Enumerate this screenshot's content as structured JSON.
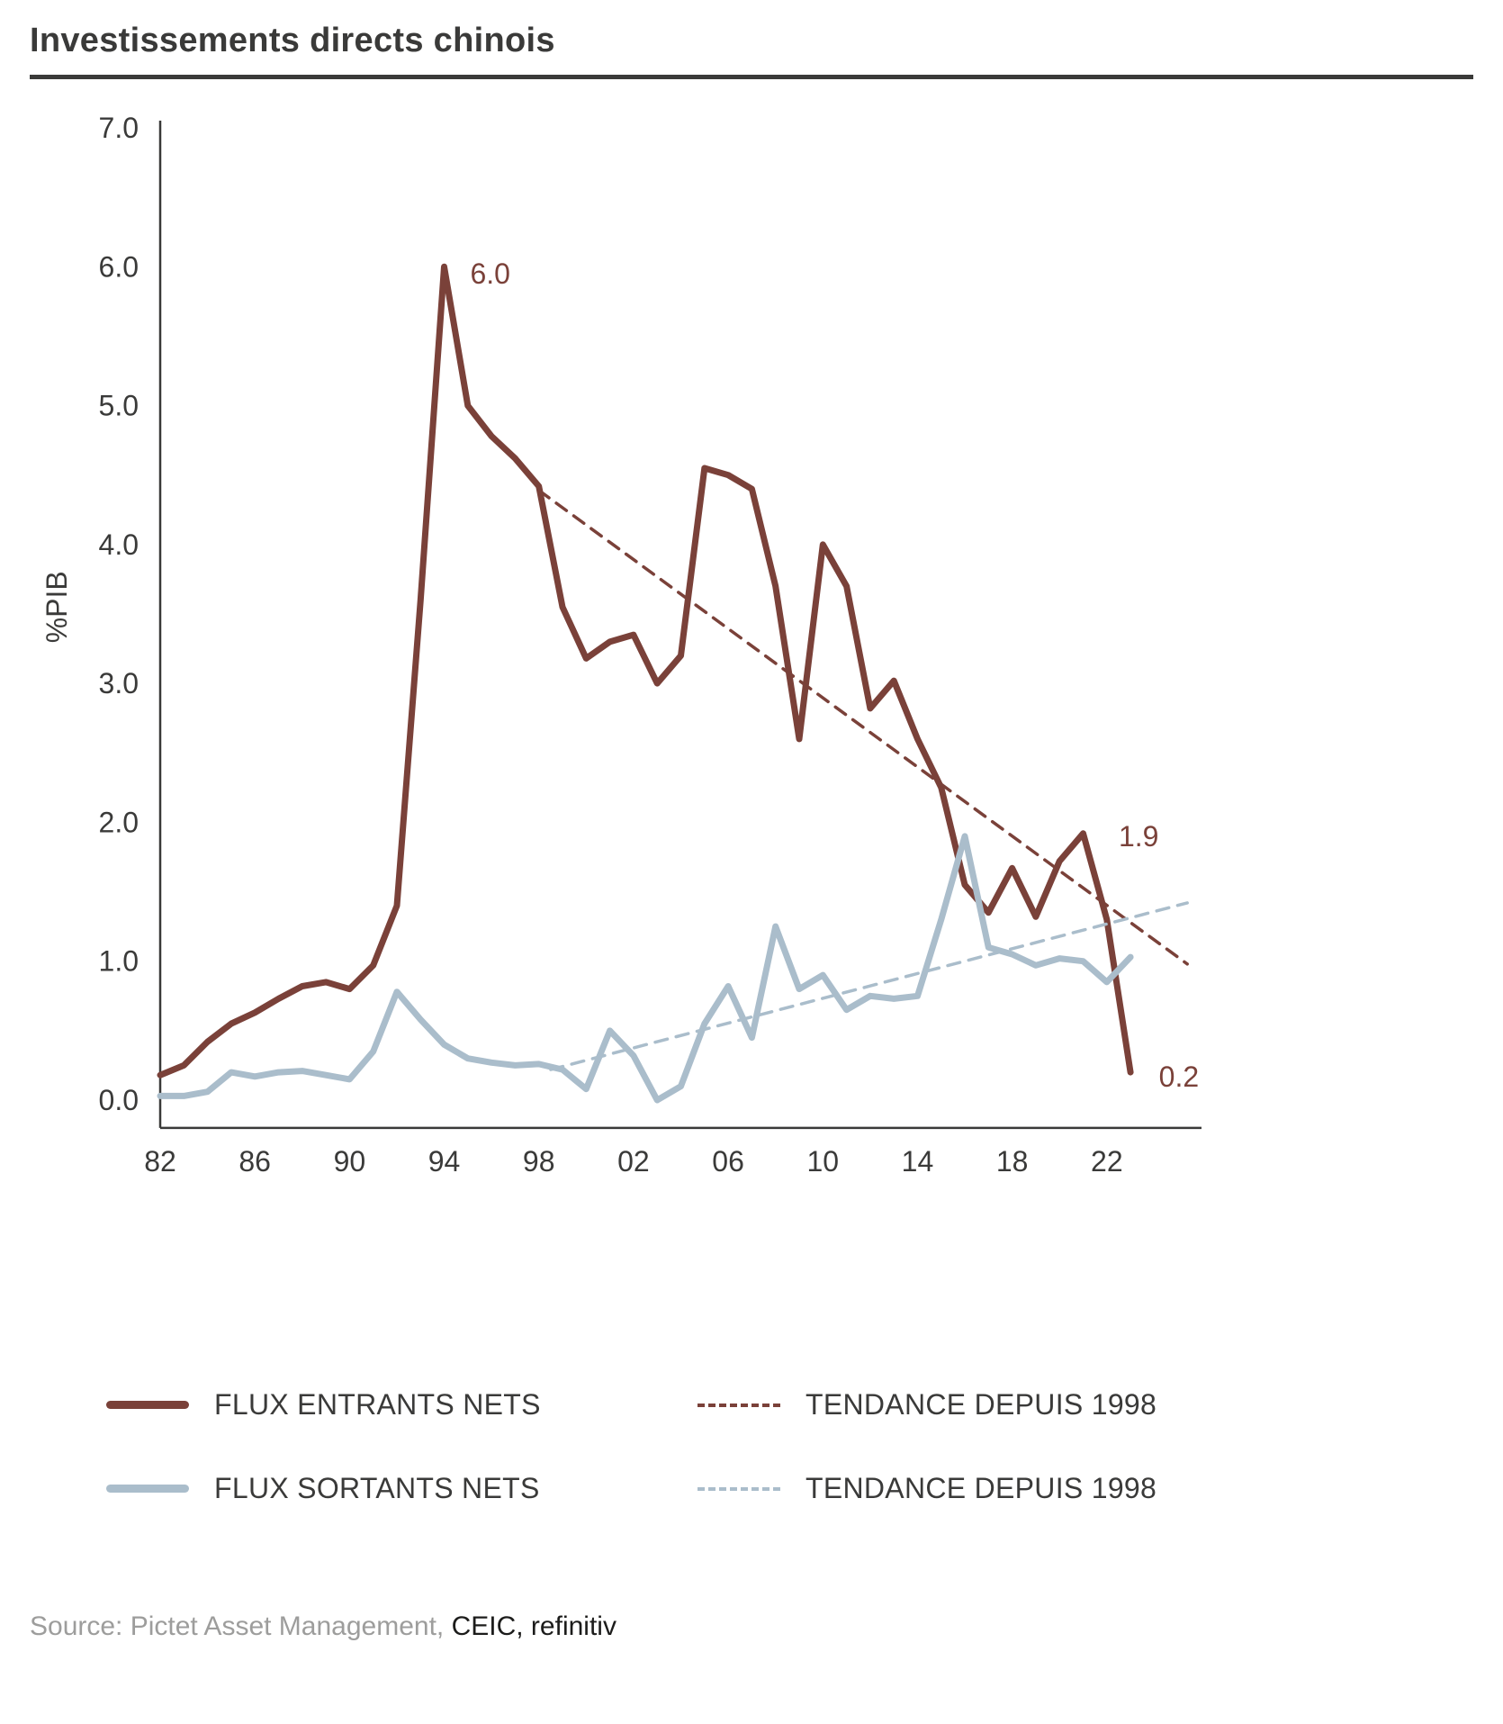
{
  "title": "Investissements directs chinois",
  "chart_data": {
    "type": "line",
    "title": "Investissements directs chinois",
    "xlabel": "",
    "ylabel": "%PIB",
    "ylim": [
      0.0,
      7.0
    ],
    "xlim": [
      1982,
      2026
    ],
    "grid": false,
    "axis_color": "#3a3a39",
    "yticks": [
      0,
      1,
      2,
      3,
      4,
      5,
      6,
      7
    ],
    "ytick_labels": [
      "0.0",
      "1.0",
      "2.0",
      "3.0",
      "4.0",
      "5.0",
      "6.0",
      "7.0"
    ],
    "xticks": [
      1982,
      1986,
      1990,
      1994,
      1998,
      2002,
      2006,
      2010,
      2014,
      2018,
      2022
    ],
    "xtick_labels": [
      "82",
      "86",
      "90",
      "94",
      "98",
      "02",
      "06",
      "10",
      "14",
      "18",
      "22"
    ],
    "series": [
      {
        "name": "FLUX ENTRANTS NETS",
        "color": "#7a4139",
        "style": "solid",
        "x": [
          1982,
          1983,
          1984,
          1985,
          1986,
          1987,
          1988,
          1989,
          1990,
          1991,
          1992,
          1993,
          1994,
          1995,
          1996,
          1997,
          1998,
          1999,
          2000,
          2001,
          2002,
          2003,
          2004,
          2005,
          2006,
          2007,
          2008,
          2009,
          2010,
          2011,
          2012,
          2013,
          2014,
          2015,
          2016,
          2017,
          2018,
          2019,
          2020,
          2021,
          2022,
          2023
        ],
        "values": [
          0.18,
          0.25,
          0.42,
          0.55,
          0.63,
          0.73,
          0.82,
          0.85,
          0.8,
          0.97,
          1.4,
          3.6,
          6.0,
          5.0,
          4.78,
          4.62,
          4.42,
          3.55,
          3.18,
          3.3,
          3.35,
          3.0,
          3.2,
          4.55,
          4.5,
          4.4,
          3.7,
          2.6,
          4.0,
          3.7,
          2.82,
          3.02,
          2.6,
          2.25,
          1.55,
          1.35,
          1.67,
          1.32,
          1.72,
          1.92,
          1.3,
          0.2
        ]
      },
      {
        "name": "FLUX SORTANTS NETS",
        "color": "#aabdcb",
        "style": "solid",
        "x": [
          1982,
          1983,
          1984,
          1985,
          1986,
          1987,
          1988,
          1989,
          1990,
          1991,
          1992,
          1993,
          1994,
          1995,
          1996,
          1997,
          1998,
          1999,
          2000,
          2001,
          2002,
          2003,
          2004,
          2005,
          2006,
          2007,
          2008,
          2009,
          2010,
          2011,
          2012,
          2013,
          2014,
          2015,
          2016,
          2017,
          2018,
          2019,
          2020,
          2021,
          2022,
          2023
        ],
        "values": [
          0.03,
          0.03,
          0.06,
          0.2,
          0.17,
          0.2,
          0.21,
          0.18,
          0.15,
          0.35,
          0.78,
          0.58,
          0.4,
          0.3,
          0.27,
          0.25,
          0.26,
          0.22,
          0.08,
          0.5,
          0.32,
          0.0,
          0.1,
          0.55,
          0.82,
          0.45,
          1.25,
          0.8,
          0.9,
          0.65,
          0.75,
          0.73,
          0.75,
          1.3,
          1.9,
          1.1,
          1.05,
          0.97,
          1.02,
          1.0,
          0.85,
          1.03
        ]
      },
      {
        "name": "TENDANCE DEPUIS 1998",
        "color": "#7a4139",
        "style": "dashed",
        "x": [
          1998,
          2025.4
        ],
        "values": [
          4.39,
          0.98
        ]
      },
      {
        "name": "TENDANCE DEPUIS 1998",
        "color": "#aabdcb",
        "style": "dashed",
        "x": [
          1998.5,
          2025.4
        ],
        "values": [
          0.22,
          1.42
        ]
      }
    ],
    "annotations": [
      {
        "text": "6.0",
        "x": 1995.1,
        "y": 5.95,
        "color": "#7a4139"
      },
      {
        "text": "1.9",
        "x": 2022.5,
        "y": 1.9,
        "color": "#7a4139"
      },
      {
        "text": "0.2",
        "x": 2024.2,
        "y": 0.17,
        "color": "#7a4139"
      }
    ],
    "legend_position": "bottom"
  },
  "legend": {
    "items": [
      {
        "label": "FLUX ENTRANTS NETS",
        "color": "#7a4139",
        "style": "solid"
      },
      {
        "label": "TENDANCE DEPUIS 1998",
        "color": "#7a4139",
        "style": "dashed"
      },
      {
        "label": "FLUX SORTANTS NETS",
        "color": "#aabdcb",
        "style": "solid"
      },
      {
        "label": "TENDANCE DEPUIS 1998",
        "color": "#aabdcb",
        "style": "dashed"
      }
    ]
  },
  "source": {
    "muted": "Source: Pictet Asset Management,",
    "emphasis": " CEIC, refinitiv"
  }
}
